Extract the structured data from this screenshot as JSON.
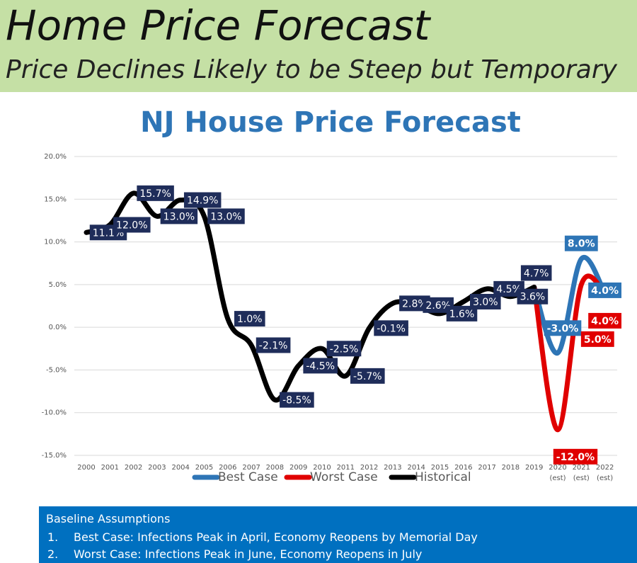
{
  "header": {
    "title": "Home Price Forecast",
    "subtitle": "Price Declines Likely to be Steep but Temporary"
  },
  "chart_data": {
    "type": "line",
    "title": "NJ House Price Forecast",
    "categories": [
      "2000",
      "2001",
      "2002",
      "2003",
      "2004",
      "2005",
      "2006",
      "2007",
      "2008",
      "2009",
      "2010",
      "2011",
      "2012",
      "2013",
      "2014",
      "2015",
      "2016",
      "2017",
      "2018",
      "2019",
      "2020\n(est)",
      "2021\n(est)",
      "2022\n(est)"
    ],
    "ylim": [
      -15,
      20
    ],
    "yticks": [
      {
        "value": -15,
        "label": "-15.0%"
      },
      {
        "value": -10,
        "label": "-10.0%"
      },
      {
        "value": -5,
        "label": "-5.0%"
      },
      {
        "value": 0,
        "label": "0.0%"
      },
      {
        "value": 5,
        "label": "5.0%"
      },
      {
        "value": 10,
        "label": "10.0%"
      },
      {
        "value": 15,
        "label": "15.0%"
      },
      {
        "value": 20,
        "label": "20.0%"
      }
    ],
    "grid": true,
    "legend": "bottom",
    "series": [
      {
        "name": "Best Case",
        "color": "#2e75b6",
        "values": [
          null,
          null,
          null,
          null,
          null,
          null,
          null,
          null,
          null,
          null,
          null,
          null,
          null,
          null,
          null,
          null,
          null,
          null,
          null,
          4.7,
          -3.0,
          8.0,
          4.0
        ],
        "value_labels": [
          null,
          null,
          null,
          null,
          null,
          null,
          null,
          null,
          null,
          null,
          null,
          null,
          null,
          null,
          null,
          null,
          null,
          null,
          null,
          null,
          "-3.0%",
          "8.0%",
          "4.0%"
        ]
      },
      {
        "name": "Worst Case",
        "color": "#e00000",
        "values": [
          null,
          null,
          null,
          null,
          null,
          null,
          null,
          null,
          null,
          null,
          null,
          null,
          null,
          null,
          null,
          null,
          null,
          null,
          null,
          4.7,
          -12.0,
          5.0,
          4.0
        ],
        "value_labels": [
          null,
          null,
          null,
          null,
          null,
          null,
          null,
          null,
          null,
          null,
          null,
          null,
          null,
          null,
          null,
          null,
          null,
          null,
          null,
          null,
          "-12.0%",
          "5.0%",
          "4.0%"
        ]
      },
      {
        "name": "Historical",
        "color": "#000000",
        "values": [
          11.1,
          12.0,
          15.7,
          13.0,
          14.9,
          13.0,
          1.0,
          -2.1,
          -8.5,
          -4.5,
          -2.5,
          -5.7,
          -0.1,
          2.8,
          2.6,
          1.6,
          3.0,
          4.5,
          3.6,
          4.7,
          null,
          null,
          null
        ],
        "value_labels": [
          "11.1%",
          "12.0%",
          "15.7%",
          "13.0%",
          "14.9%",
          "13.0%",
          "1.0%",
          "-2.1%",
          "-8.5%",
          "-4.5%",
          "-2.5%",
          "-5.7%",
          "-0.1%",
          "2.8%",
          "2.6%",
          "1.6%",
          "3.0%",
          "4.5%",
          "3.6%",
          "4.7%",
          null,
          null,
          null
        ]
      }
    ]
  },
  "assumptions": {
    "title": "Baseline Assumptions",
    "items": [
      {
        "number": "1.",
        "text": "Best Case:  Infections Peak in April, Economy Reopens by Memorial Day"
      },
      {
        "number": "2.",
        "text": "Worst Case:  Infections Peak in June, Economy Reopens in July"
      }
    ]
  }
}
